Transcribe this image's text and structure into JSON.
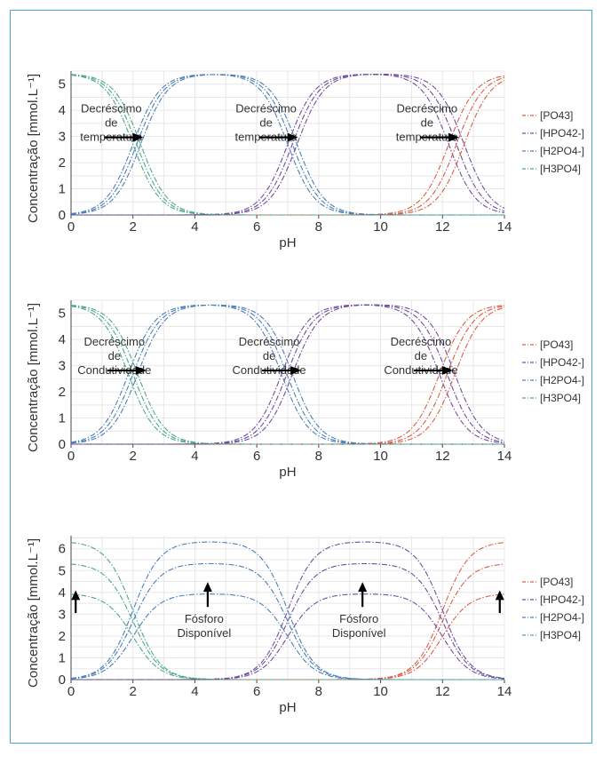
{
  "colors": {
    "PO43": "#d95f4a",
    "HPO42": "#6f4f9f",
    "H2PO4": "#4d7fb8",
    "H3PO4": "#4ea88a",
    "frame": "#3fa9d4"
  },
  "chart_data": [
    {
      "type": "line",
      "xlabel": "pH",
      "ylabel": "Concentração [mmol.L⁻¹]",
      "xlim": [
        0,
        14
      ],
      "ylim": [
        0,
        5.5
      ],
      "xticks": [
        0,
        2,
        4,
        6,
        8,
        10,
        12,
        14
      ],
      "yticks": [
        0,
        1,
        2,
        3,
        4,
        5
      ],
      "grid": true,
      "legend": "right",
      "legend_entries": [
        "[PO43]",
        "[HPO42-]",
        "[H2PO4-]",
        "[H3PO4]"
      ],
      "total": 5.4,
      "pka_sets": [
        [
          2.0,
          7.0,
          12.2
        ],
        [
          2.12,
          7.15,
          12.45
        ],
        [
          2.25,
          7.3,
          12.7
        ]
      ],
      "annotations": [
        {
          "lines": [
            "Decréscimo",
            "de",
            "temperatura"
          ],
          "x": 1.3,
          "y": 3.0,
          "arrow": "right"
        },
        {
          "lines": [
            "Decréscimo",
            "de",
            "temperatura"
          ],
          "x": 6.3,
          "y": 3.0,
          "arrow": "right"
        },
        {
          "lines": [
            "Decréscimo",
            "de",
            "temperatura"
          ],
          "x": 11.5,
          "y": 3.0,
          "arrow": "right"
        }
      ]
    },
    {
      "type": "line",
      "xlabel": "pH",
      "ylabel": "Concentração [mmol.L⁻¹]",
      "xlim": [
        0,
        14
      ],
      "ylim": [
        0,
        5.5
      ],
      "xticks": [
        0,
        2,
        4,
        6,
        8,
        10,
        12,
        14
      ],
      "yticks": [
        0,
        1,
        2,
        3,
        4,
        5
      ],
      "grid": true,
      "legend": "right",
      "legend_entries": [
        "[PO43]",
        "[HPO42-]",
        "[H2PO4-]",
        "[H3PO4]"
      ],
      "total": 5.35,
      "pka_sets": [
        [
          1.85,
          6.8,
          11.9
        ],
        [
          2.0,
          6.97,
          12.15
        ],
        [
          2.15,
          7.15,
          12.4
        ]
      ],
      "annotations": [
        {
          "lines": [
            "Decréscimo",
            "de",
            "Condutividade"
          ],
          "x": 1.4,
          "y": 2.85,
          "arrow": "right"
        },
        {
          "lines": [
            "Decréscimo",
            "de",
            "Condutividade"
          ],
          "x": 6.4,
          "y": 2.85,
          "arrow": "right"
        },
        {
          "lines": [
            "Decréscimo",
            "de",
            "Condutividade"
          ],
          "x": 11.3,
          "y": 2.85,
          "arrow": "right"
        }
      ]
    },
    {
      "type": "line",
      "xlabel": "pH",
      "ylabel": "Concentração [mmol.L⁻¹]",
      "xlim": [
        0,
        14
      ],
      "ylim": [
        0,
        6.6
      ],
      "xticks": [
        0,
        2,
        4,
        6,
        8,
        10,
        12,
        14
      ],
      "yticks": [
        0,
        1,
        2,
        3,
        4,
        5,
        6
      ],
      "grid": true,
      "legend": "right",
      "legend_entries": [
        "[PO43]",
        "[HPO42-]",
        "[H2PO4-]",
        "[H3PO4]"
      ],
      "totals": [
        6.35,
        5.35,
        3.95
      ],
      "pka": [
        2.0,
        7.0,
        12.0
      ],
      "annotations": [
        {
          "lines": [
            "Fósforo",
            "Disponível"
          ],
          "x": 4.3,
          "y": 2.6,
          "arrow": "up"
        },
        {
          "lines": [
            "Fósforo",
            "Disponível"
          ],
          "x": 9.3,
          "y": 2.6,
          "arrow": "up"
        }
      ],
      "side_arrows": [
        0.15,
        13.85
      ]
    }
  ]
}
